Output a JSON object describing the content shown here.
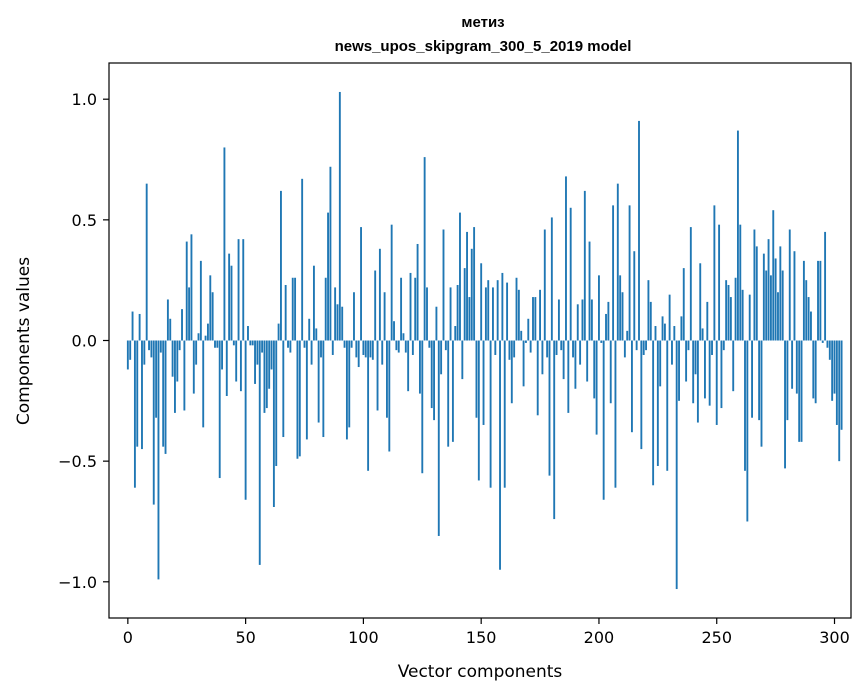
{
  "chart_data": {
    "type": "bar",
    "title": "метиз",
    "subtitle": "news_upos_skipgram_300_5_2019 model",
    "xlabel": "Vector components",
    "ylabel": "Components values",
    "xlim": [
      -8,
      307
    ],
    "ylim": [
      -1.15,
      1.15
    ],
    "xticks": [
      0,
      50,
      100,
      150,
      200,
      250,
      300
    ],
    "xtick_labels": [
      "0",
      "50",
      "100",
      "150",
      "200",
      "250",
      "300"
    ],
    "yticks": [
      -1.0,
      -0.5,
      0.0,
      0.5,
      1.0
    ],
    "ytick_labels": [
      "−1.0",
      "−0.5",
      "0.0",
      "0.5",
      "1.0"
    ],
    "grid": false,
    "bar_color": "#1f77b4",
    "x_start": 0,
    "values": [
      -0.12,
      -0.08,
      0.12,
      -0.61,
      -0.44,
      0.11,
      -0.45,
      -0.1,
      0.65,
      -0.04,
      -0.07,
      -0.68,
      -0.32,
      -0.99,
      -0.05,
      -0.44,
      -0.47,
      0.17,
      0.09,
      -0.15,
      -0.3,
      -0.17,
      -0.04,
      0.13,
      -0.29,
      0.41,
      0.22,
      0.44,
      -0.22,
      -0.1,
      0.03,
      0.33,
      -0.36,
      0.02,
      0.07,
      0.27,
      0.2,
      -0.03,
      -0.03,
      -0.57,
      -0.12,
      0.8,
      -0.23,
      0.36,
      0.31,
      -0.02,
      -0.17,
      0.42,
      -0.21,
      0.42,
      -0.66,
      0.06,
      -0.02,
      -0.02,
      -0.18,
      -0.1,
      -0.93,
      -0.05,
      -0.3,
      -0.28,
      -0.2,
      -0.12,
      -0.69,
      -0.52,
      0.07,
      0.62,
      -0.4,
      0.23,
      -0.03,
      -0.05,
      0.26,
      0.26,
      -0.49,
      -0.48,
      0.67,
      -0.03,
      -0.41,
      0.09,
      -0.1,
      0.31,
      0.05,
      -0.34,
      -0.07,
      -0.4,
      0.26,
      0.53,
      0.72,
      -0.06,
      0.22,
      0.15,
      1.03,
      0.14,
      -0.03,
      -0.41,
      -0.36,
      -0.03,
      0.2,
      -0.07,
      -0.11,
      0.47,
      -0.06,
      -0.07,
      -0.54,
      -0.07,
      -0.08,
      0.29,
      -0.29,
      0.38,
      -0.1,
      0.2,
      -0.32,
      -0.46,
      0.48,
      0.08,
      -0.04,
      -0.05,
      0.26,
      0.03,
      -0.05,
      -0.21,
      0.28,
      -0.06,
      0.26,
      0.4,
      -0.22,
      -0.55,
      0.76,
      0.22,
      -0.03,
      -0.28,
      -0.33,
      0.14,
      -0.81,
      -0.14,
      0.46,
      -0.04,
      -0.44,
      0.22,
      -0.42,
      0.06,
      0.23,
      0.53,
      -0.16,
      0.3,
      0.45,
      0.18,
      0.38,
      0.47,
      -0.32,
      -0.58,
      0.32,
      -0.35,
      0.22,
      0.25,
      -0.61,
      0.22,
      -0.06,
      0.25,
      -0.95,
      0.28,
      -0.61,
      0.24,
      -0.08,
      -0.26,
      -0.07,
      0.26,
      0.21,
      0.04,
      -0.19,
      -0.01,
      0.09,
      -0.05,
      0.18,
      0.18,
      -0.31,
      0.21,
      -0.14,
      0.46,
      -0.07,
      -0.56,
      0.51,
      -0.74,
      -0.06,
      0.17,
      -0.04,
      -0.16,
      0.68,
      -0.3,
      0.55,
      -0.07,
      -0.2,
      0.15,
      -0.1,
      0.17,
      0.62,
      -0.17,
      0.41,
      0.17,
      -0.24,
      -0.39,
      0.27,
      -0.01,
      -0.66,
      0.11,
      0.16,
      -0.26,
      0.56,
      -0.61,
      0.65,
      0.27,
      0.2,
      -0.07,
      0.04,
      0.56,
      -0.38,
      0.37,
      -0.04,
      0.91,
      -0.45,
      -0.06,
      -0.04,
      0.25,
      0.16,
      -0.6,
      0.06,
      -0.52,
      -0.19,
      0.1,
      0.07,
      -0.54,
      0.19,
      -0.1,
      0.06,
      -1.03,
      -0.25,
      0.1,
      0.3,
      -0.17,
      -0.04,
      0.47,
      -0.26,
      -0.14,
      -0.34,
      0.32,
      0.05,
      -0.24,
      0.16,
      -0.27,
      -0.06,
      0.56,
      -0.35,
      0.48,
      -0.28,
      -0.04,
      0.25,
      0.23,
      0.18,
      -0.21,
      0.26,
      0.87,
      0.48,
      0.21,
      -0.54,
      -0.75,
      0.19,
      -0.32,
      0.46,
      0.39,
      -0.33,
      -0.44,
      0.36,
      0.29,
      0.42,
      0.27,
      0.54,
      0.34,
      0.2,
      0.39,
      0.29,
      -0.53,
      -0.33,
      0.46,
      -0.2,
      0.37,
      -0.22,
      -0.42,
      -0.42,
      0.33,
      0.25,
      0.18,
      0.12,
      -0.24,
      -0.26,
      0.33,
      0.33,
      -0.01,
      0.45,
      -0.03,
      -0.08,
      -0.25,
      -0.22,
      -0.35,
      -0.5,
      -0.37
    ]
  }
}
